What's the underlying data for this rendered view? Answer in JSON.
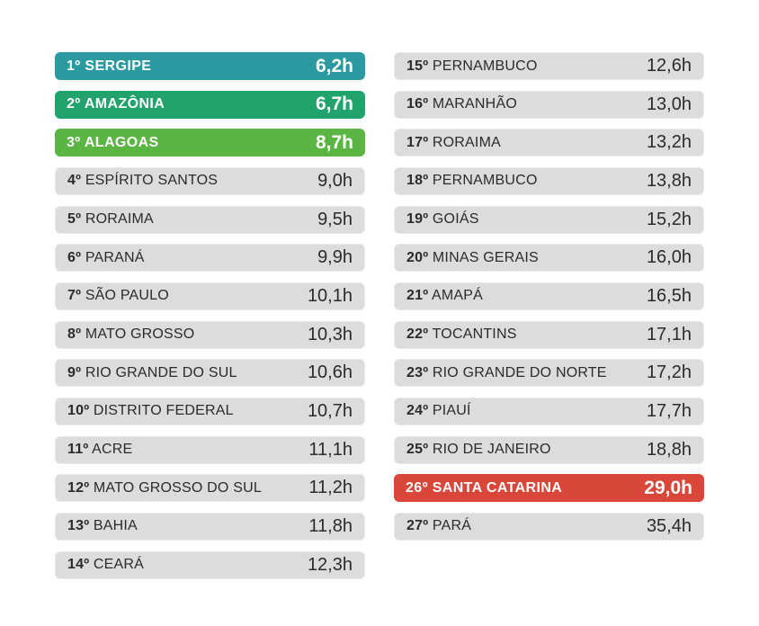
{
  "chart_data": {
    "type": "table",
    "columns": [
      "rank",
      "state",
      "hours"
    ],
    "rows": [
      {
        "rank": "1º",
        "state": "SERGIPE",
        "value": "6,2h",
        "hours": 6.2,
        "color": "#2a9aa0"
      },
      {
        "rank": "2º",
        "state": "AMAZÔNIA",
        "value": "6,7h",
        "hours": 6.7,
        "color": "#22a36d"
      },
      {
        "rank": "3º",
        "state": "ALAGOAS",
        "value": "8,7h",
        "hours": 8.7,
        "color": "#5bb543"
      },
      {
        "rank": "4º",
        "state": "ESPÍRITO SANTOS",
        "value": "9,0h",
        "hours": 9.0
      },
      {
        "rank": "5º",
        "state": "RORAIMA",
        "value": "9,5h",
        "hours": 9.5
      },
      {
        "rank": "6º",
        "state": "PARANÁ",
        "value": "9,9h",
        "hours": 9.9
      },
      {
        "rank": "7º",
        "state": "SÃO PAULO",
        "value": "10,1h",
        "hours": 10.1
      },
      {
        "rank": "8º",
        "state": "MATO GROSSO",
        "value": "10,3h",
        "hours": 10.3
      },
      {
        "rank": "9º",
        "state": "RIO GRANDE DO SUL",
        "value": "10,6h",
        "hours": 10.6
      },
      {
        "rank": "10º",
        "state": "DISTRITO FEDERAL",
        "value": "10,7h",
        "hours": 10.7
      },
      {
        "rank": "11º",
        "state": "ACRE",
        "value": "11,1h",
        "hours": 11.1
      },
      {
        "rank": "12º",
        "state": "MATO GROSSO DO SUL",
        "value": "11,2h",
        "hours": 11.2
      },
      {
        "rank": "13º",
        "state": "BAHIA",
        "value": "11,8h",
        "hours": 11.8
      },
      {
        "rank": "14º",
        "state": "CEARÁ",
        "value": "12,3h",
        "hours": 12.3
      },
      {
        "rank": "15º",
        "state": "PERNAMBUCO",
        "value": "12,6h",
        "hours": 12.6
      },
      {
        "rank": "16º",
        "state": "MARANHÃO",
        "value": "13,0h",
        "hours": 13.0
      },
      {
        "rank": "17º",
        "state": "RORAIMA",
        "value": "13,2h",
        "hours": 13.2
      },
      {
        "rank": "18º",
        "state": "PERNAMBUCO",
        "value": "13,8h",
        "hours": 13.8
      },
      {
        "rank": "19º",
        "state": "GOIÁS",
        "value": "15,2h",
        "hours": 15.2
      },
      {
        "rank": "20º",
        "state": "MINAS GERAIS",
        "value": "16,0h",
        "hours": 16.0
      },
      {
        "rank": "21º",
        "state": "AMAPÁ",
        "value": "16,5h",
        "hours": 16.5
      },
      {
        "rank": "22º",
        "state": "TOCANTINS",
        "value": "17,1h",
        "hours": 17.1
      },
      {
        "rank": "23º",
        "state": "RIO GRANDE DO NORTE",
        "value": "17,2h",
        "hours": 17.2
      },
      {
        "rank": "24º",
        "state": "PIAUÍ",
        "value": "17,7h",
        "hours": 17.7
      },
      {
        "rank": "25º",
        "state": "RIO DE JANEIRO",
        "value": "18,8h",
        "hours": 18.8
      },
      {
        "rank": "26º",
        "state": "SANTA CATARINA",
        "value": "29,0h",
        "hours": 29.0,
        "color": "#d9463a"
      },
      {
        "rank": "27º",
        "state": "PARÁ",
        "value": "35,4h",
        "hours": 35.4
      }
    ]
  }
}
